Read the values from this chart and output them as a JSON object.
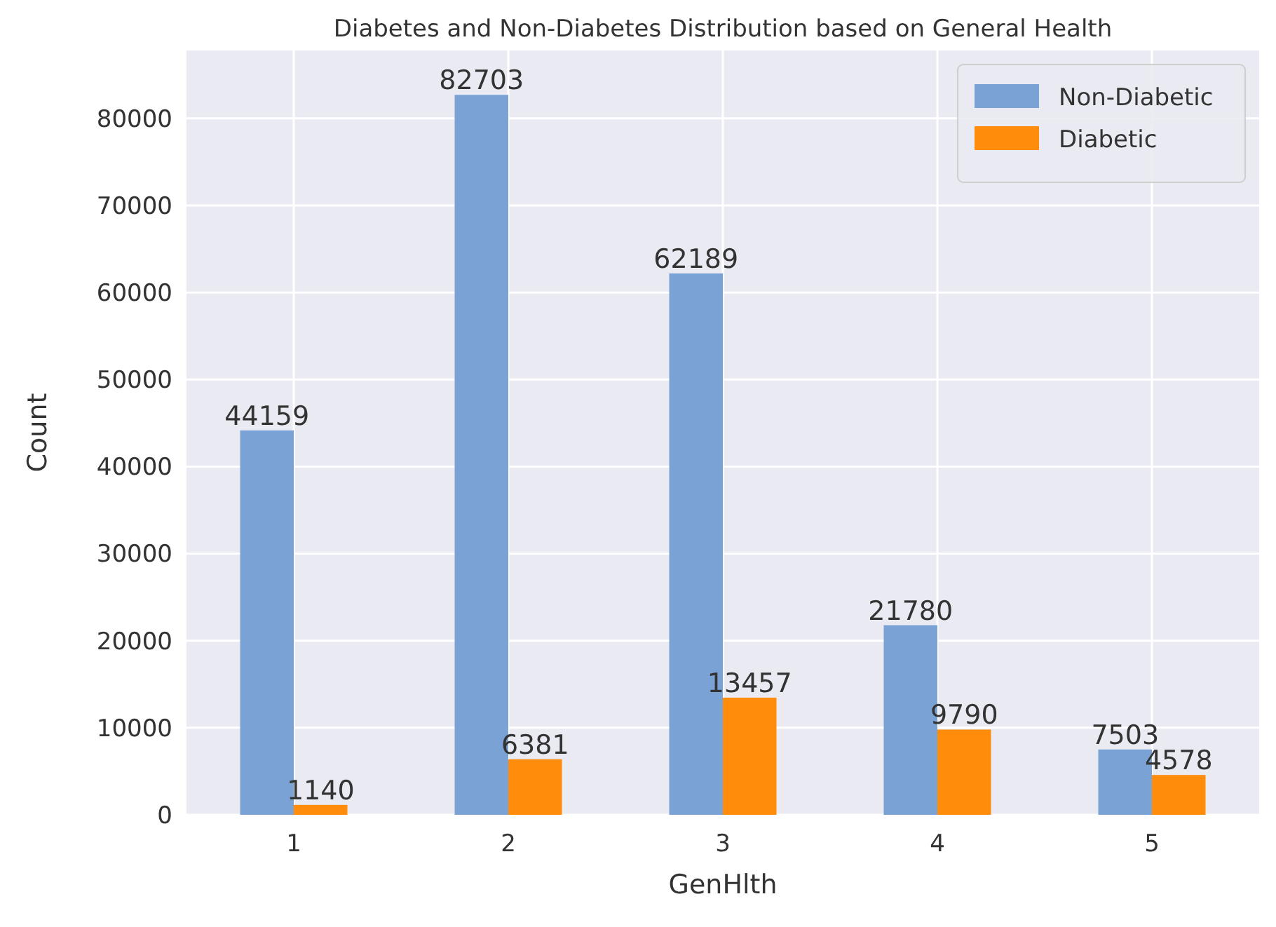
{
  "chart_data": {
    "type": "bar",
    "title": "Diabetes and Non-Diabetes Distribution based on General Health",
    "xlabel": "GenHlth",
    "ylabel": "Count",
    "categories": [
      "1",
      "2",
      "3",
      "4",
      "5"
    ],
    "series": [
      {
        "name": "Non-Diabetic",
        "color": "#7aa2d4",
        "values": [
          44159,
          82703,
          62189,
          21780,
          7503
        ]
      },
      {
        "name": "Diabetic",
        "color": "#ff8c0a",
        "values": [
          1140,
          6381,
          13457,
          9790,
          4578
        ]
      }
    ],
    "ylim": [
      0,
      87800
    ],
    "yticks": [
      0,
      10000,
      20000,
      30000,
      40000,
      50000,
      60000,
      70000,
      80000
    ],
    "grid": true,
    "legend": "top right",
    "data_labels": true
  }
}
